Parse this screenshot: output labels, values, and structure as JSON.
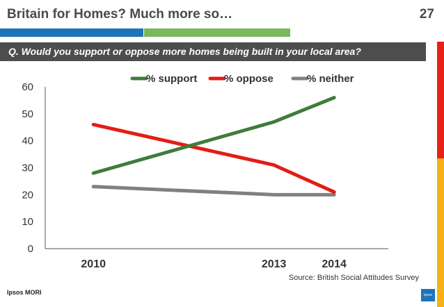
{
  "header": {
    "title": "Britain for Homes? Much more so…",
    "page_number": "27"
  },
  "question": "Q. Would you support or oppose more homes being built in your local area?",
  "source": "Source:  British Social Attitudes Survey",
  "logo_text": "Ipsos MORI",
  "corner_logo_text": "Ipsos",
  "colors": {
    "brand_blue": "#1f73b7",
    "brand_green": "#79b85c",
    "support": "#3f7c3a",
    "oppose": "#e31d15",
    "neither": "#808080",
    "accent_red": "#e62118",
    "accent_yellow": "#f4b315"
  },
  "chart_data": {
    "type": "line",
    "categories": [
      "2010",
      "2013",
      "2014"
    ],
    "x_positions": [
      2010,
      2013,
      2014
    ],
    "series": [
      {
        "name": "% support",
        "values": [
          28,
          47,
          56
        ],
        "color": "#3f7c3a"
      },
      {
        "name": "% oppose",
        "values": [
          46,
          31,
          21
        ],
        "color": "#e31d15"
      },
      {
        "name": "% neither",
        "values": [
          23,
          20,
          20
        ],
        "color": "#808080"
      }
    ],
    "yticks": [
      0,
      10,
      20,
      30,
      40,
      50,
      60
    ],
    "ylim": [
      0,
      60
    ],
    "xlim": [
      2009.2,
      2014.9
    ],
    "grid": false,
    "legend_position": "top"
  }
}
